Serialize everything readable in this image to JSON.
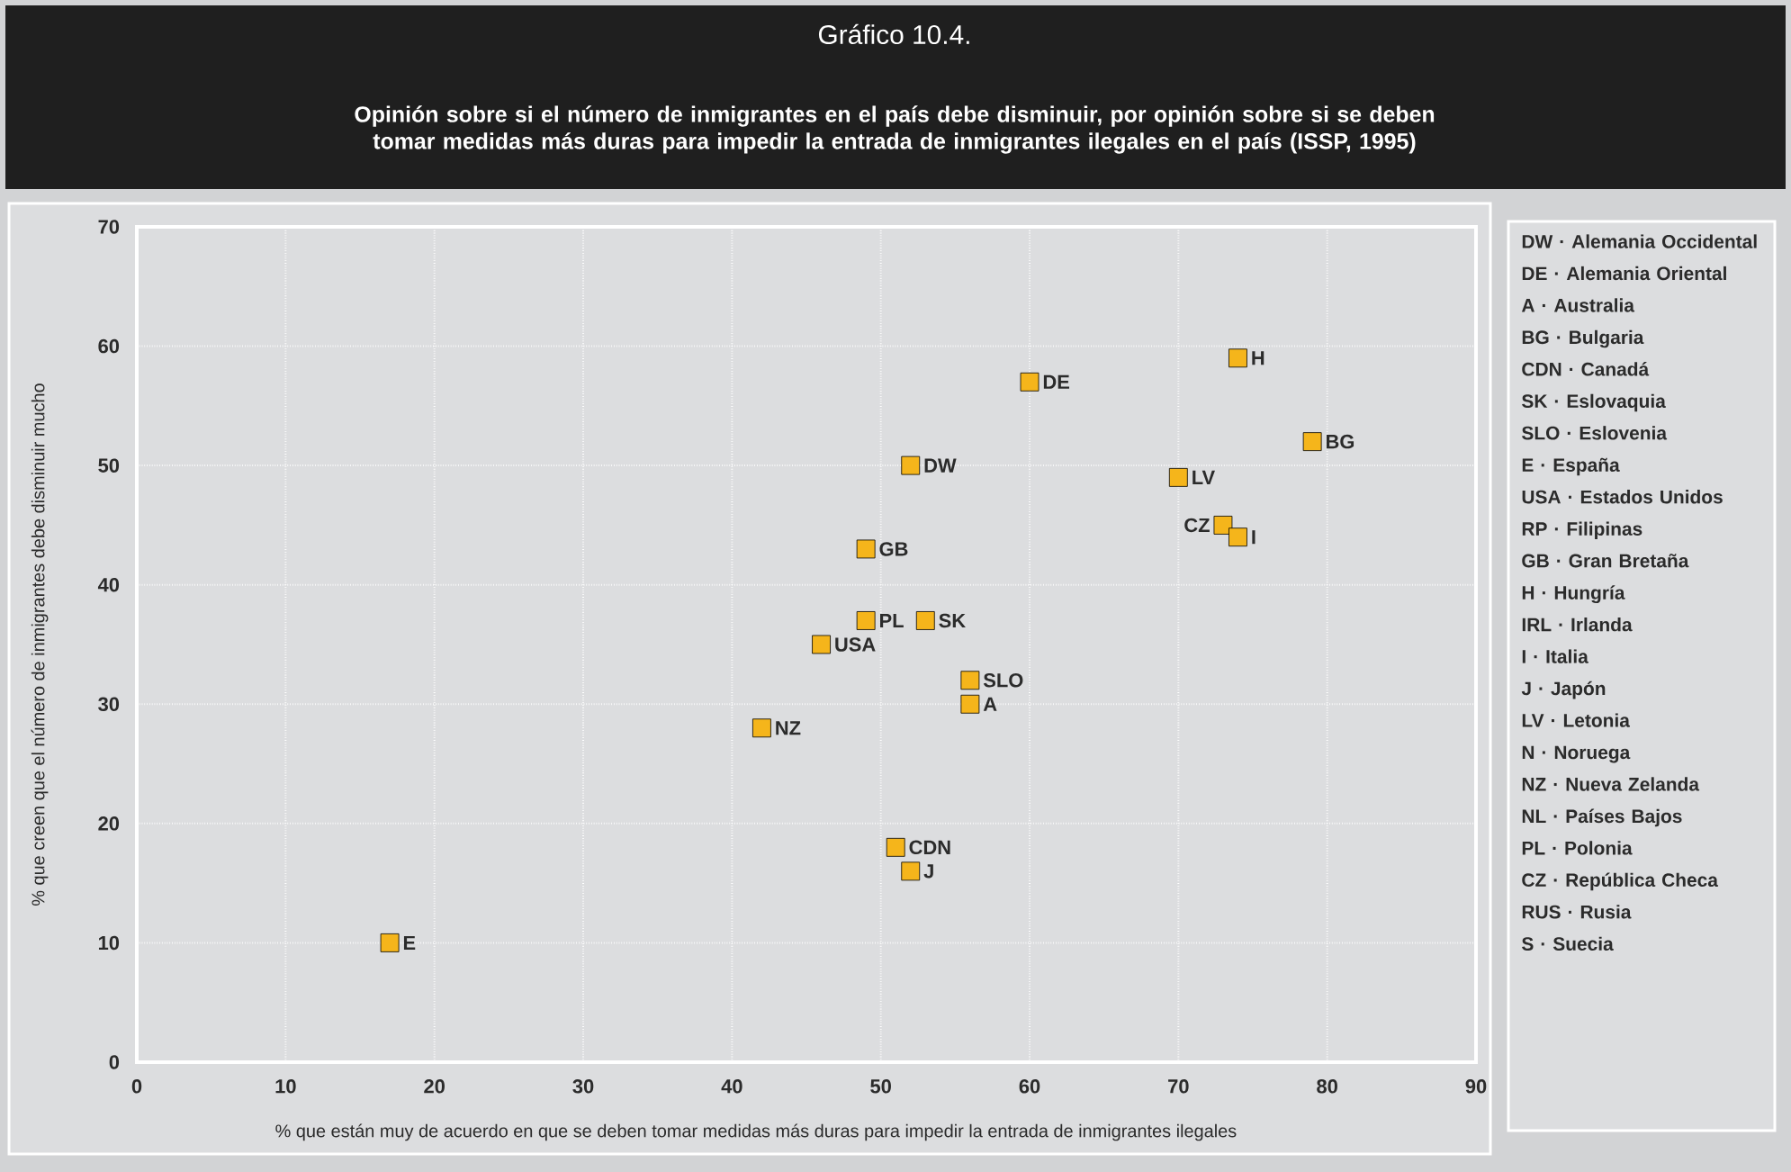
{
  "chart_data": {
    "type": "scatter",
    "title": "Gráfico 10.4.",
    "subtitle": "Opinión sobre si el número de inmigrantes en el país debe disminuir, por opinión sobre si se deben tomar medidas más duras para impedir la entrada de inmigrantes ilegales en el país (ISSP, 1995)",
    "xlabel": "% que están muy de acuerdo en que se deben tomar medidas más duras para impedir la entrada de inmigrantes ilegales",
    "ylabel": "% que creen que el número de inmigrantes debe disminuir mucho",
    "x": [
      17,
      42,
      46,
      49,
      49,
      52,
      53,
      56,
      56,
      51,
      52,
      60,
      74,
      79,
      70,
      73,
      74
    ],
    "values": [
      10,
      28,
      35,
      43,
      37,
      50,
      37,
      32,
      30,
      18,
      16,
      57,
      59,
      52,
      49,
      45,
      44
    ],
    "color": "#f5b51b",
    "marker": "square",
    "xlim": [
      0,
      90
    ],
    "ylim": [
      0,
      70
    ],
    "xticks": [
      0,
      10,
      20,
      30,
      40,
      50,
      60,
      70,
      80,
      90
    ],
    "yticks": [
      0,
      10,
      20,
      30,
      40,
      50,
      60,
      70
    ],
    "grid": true,
    "annotations": [
      {
        "text": "E",
        "x": 17,
        "y": 10
      },
      {
        "text": "NZ",
        "x": 42,
        "y": 28
      },
      {
        "text": "USA",
        "x": 46,
        "y": 35
      },
      {
        "text": "GB",
        "x": 49,
        "y": 43
      },
      {
        "text": "PL",
        "x": 49,
        "y": 37
      },
      {
        "text": "DW",
        "x": 52,
        "y": 50
      },
      {
        "text": "SK",
        "x": 53,
        "y": 37
      },
      {
        "text": "SLO",
        "x": 56,
        "y": 32
      },
      {
        "text": "A",
        "x": 56,
        "y": 30
      },
      {
        "text": "CDN",
        "x": 51,
        "y": 18
      },
      {
        "text": "J",
        "x": 52,
        "y": 16
      },
      {
        "text": "DE",
        "x": 60,
        "y": 57
      },
      {
        "text": "H",
        "x": 74,
        "y": 59
      },
      {
        "text": "BG",
        "x": 79,
        "y": 52
      },
      {
        "text": "LV",
        "x": 70,
        "y": 49
      },
      {
        "text": "CZ",
        "x": 73,
        "y": 45
      },
      {
        "text": "I",
        "x": 74,
        "y": 44
      },
      "DW · Alemania Occidental",
      "DE · Alemania Oriental",
      "A · Australia",
      "BG · Bulgaria",
      "CDN · Canadá",
      "SK · Eslovaquia",
      "SLO · Eslovenia",
      "E · España",
      "USA · Estados Unidos",
      "RP · Filipinas",
      "GB · Gran Bretaña",
      "H · Hungría",
      "IRL · Irlanda",
      "I · Italia",
      "J · Japón",
      "LV · Letonia",
      "N · Noruega",
      "NZ · Nueva Zelanda",
      "NL · Países Bajos",
      "PL · Polonia",
      "CZ · República Checa",
      "RUS · Rusia",
      "S · Suecia"
    ]
  }
}
